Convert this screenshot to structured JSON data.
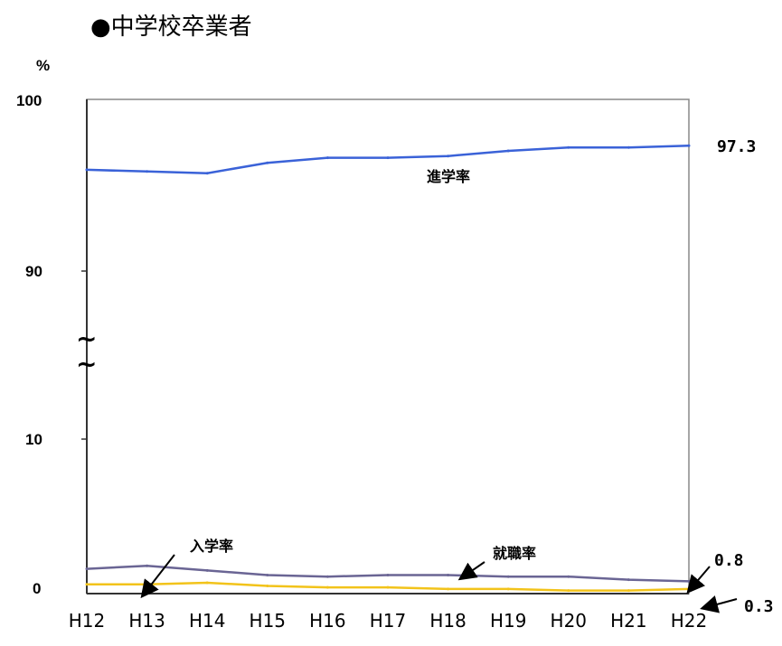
{
  "chart_data": {
    "type": "line",
    "title": "●中学校卒業者",
    "unit_label": "%",
    "categories": [
      "H12",
      "H13",
      "H14",
      "H15",
      "H16",
      "H17",
      "H18",
      "H19",
      "H20",
      "H21",
      "H22"
    ],
    "y_ticks": [
      "100",
      "90",
      "10",
      "0"
    ],
    "axis_break": "~",
    "series": [
      {
        "name": "進学率",
        "color": "#3a62d8",
        "values": [
          95.9,
          95.8,
          95.7,
          96.3,
          96.6,
          96.6,
          96.7,
          97.0,
          97.2,
          97.2,
          97.3
        ]
      },
      {
        "name": "就職率",
        "color": "#6a6594",
        "values": [
          1.6,
          1.8,
          1.5,
          1.2,
          1.1,
          1.2,
          1.2,
          1.1,
          1.1,
          0.9,
          0.8
        ]
      },
      {
        "name": "入学率",
        "color": "#f2c31a",
        "values": [
          0.6,
          0.6,
          0.7,
          0.5,
          0.4,
          0.4,
          0.3,
          0.3,
          0.2,
          0.2,
          0.3
        ]
      }
    ],
    "end_labels": [
      "97.3",
      "0.8",
      "0.3"
    ]
  }
}
